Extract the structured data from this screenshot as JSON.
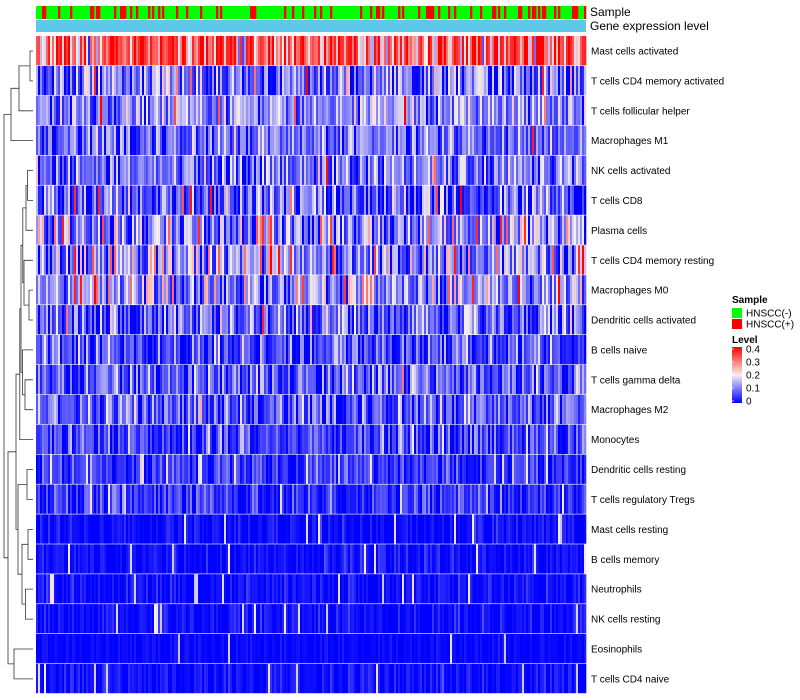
{
  "chart_data": {
    "type": "heatmap",
    "title": "",
    "annotation_tracks": [
      "Sample",
      "Gene expression level"
    ],
    "rows": [
      {
        "name": "Mast cells activated",
        "mean": 0.31,
        "spread": 0.1,
        "hi_prob": 0.35
      },
      {
        "name": "T cells CD4 memory activated",
        "mean": 0.08,
        "spread": 0.08,
        "hi_prob": 0.02
      },
      {
        "name": "T cells follicular helper",
        "mean": 0.11,
        "spread": 0.06,
        "hi_prob": 0.02
      },
      {
        "name": "Macrophages M1",
        "mean": 0.09,
        "spread": 0.06,
        "hi_prob": 0.01
      },
      {
        "name": "NK cells activated",
        "mean": 0.09,
        "spread": 0.06,
        "hi_prob": 0.01
      },
      {
        "name": "T cells CD8",
        "mean": 0.07,
        "spread": 0.08,
        "hi_prob": 0.02
      },
      {
        "name": "Plasma cells",
        "mean": 0.11,
        "spread": 0.09,
        "hi_prob": 0.06
      },
      {
        "name": "T cells CD4 memory resting",
        "mean": 0.12,
        "spread": 0.09,
        "hi_prob": 0.04
      },
      {
        "name": "Macrophages M0",
        "mean": 0.11,
        "spread": 0.08,
        "hi_prob": 0.04
      },
      {
        "name": "Dendritic cells activated",
        "mean": 0.07,
        "spread": 0.07,
        "hi_prob": 0.01
      },
      {
        "name": "B cells naive",
        "mean": 0.06,
        "spread": 0.06,
        "hi_prob": 0.01
      },
      {
        "name": "T cells gamma delta",
        "mean": 0.07,
        "spread": 0.06,
        "hi_prob": 0.01
      },
      {
        "name": "Macrophages M2",
        "mean": 0.07,
        "spread": 0.06,
        "hi_prob": 0.0
      },
      {
        "name": "Monocytes",
        "mean": 0.05,
        "spread": 0.05,
        "hi_prob": 0.0
      },
      {
        "name": "Dendritic cells resting",
        "mean": 0.04,
        "spread": 0.04,
        "hi_prob": 0.0
      },
      {
        "name": "T cells regulatory  Tregs",
        "mean": 0.04,
        "spread": 0.04,
        "hi_prob": 0.0
      },
      {
        "name": "Mast cells resting",
        "mean": 0.01,
        "spread": 0.02,
        "hi_prob": 0.0
      },
      {
        "name": "B cells memory",
        "mean": 0.01,
        "spread": 0.02,
        "hi_prob": 0.0
      },
      {
        "name": "Neutrophils",
        "mean": 0.01,
        "spread": 0.02,
        "hi_prob": 0.0
      },
      {
        "name": "NK cells resting",
        "mean": 0.01,
        "spread": 0.02,
        "hi_prob": 0.0
      },
      {
        "name": "Eosinophils",
        "mean": 0.005,
        "spread": 0.01,
        "hi_prob": 0.0
      },
      {
        "name": "T cells CD4 naive",
        "mean": 0.01,
        "spread": 0.02,
        "hi_prob": 0.0
      }
    ],
    "n_samples": 275,
    "sample_groups": [
      "HNSCC(-)",
      "HNSCC(+)"
    ],
    "sample_group_fraction_positive": 0.25,
    "colorscale": {
      "min": 0,
      "max": 0.4,
      "stops": [
        {
          "value": 0.0,
          "color": "#0000ff"
        },
        {
          "value": 0.2,
          "color": "#f5f0f0"
        },
        {
          "value": 0.4,
          "color": "#ff0000"
        }
      ]
    },
    "legend": {
      "position": "right",
      "sample_title": "Sample",
      "sample_entries": [
        {
          "label": "HNSCC(-)",
          "color": "#00ff00"
        },
        {
          "label": "HNSCC(+)",
          "color": "#ff0000"
        }
      ],
      "level_title": "Level",
      "level_ticks": [
        "0.4",
        "0.3",
        "0.2",
        "0.1",
        "0"
      ]
    },
    "gene_expression_color": "#5ec8e8",
    "dendrogram": "rows"
  }
}
